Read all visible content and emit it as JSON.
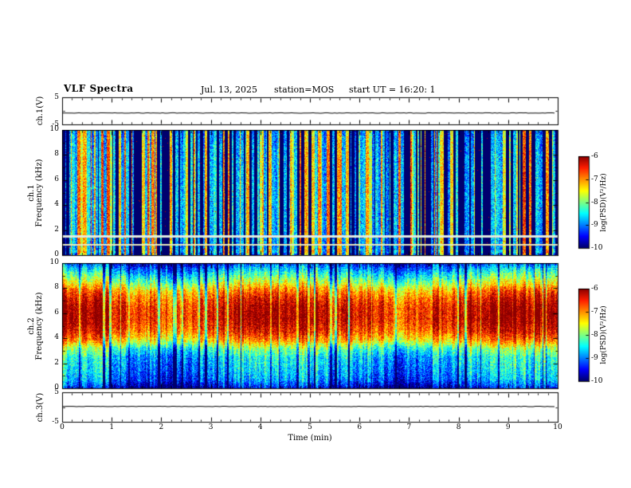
{
  "header": {
    "title": "VLF Spectra",
    "date": "Jul. 13, 2025",
    "station": "station=MOS",
    "start_ut": "start UT =  16:20: 1"
  },
  "chart_data": {
    "type": "heatmap",
    "title": "VLF Spectra",
    "description": "Multichannel VLF display: ch.1 voltage strip, ch.1 and ch.2 frequency-time spectrograms (0-10 kHz) over 0-10 minutes, ch.3 voltage strip, with two jet colorbars of log power spectral density",
    "x_axis": {
      "label": "Time (min)",
      "min": 0,
      "max": 10,
      "major_ticks": [
        0,
        1,
        2,
        3,
        4,
        5,
        6,
        7,
        8,
        9,
        10
      ],
      "minor_per_major": 5
    },
    "colormap": {
      "name": "jet",
      "stops": [
        [
          0.0,
          [
            0,
            0,
            110
          ]
        ],
        [
          0.125,
          [
            0,
            0,
            255
          ]
        ],
        [
          0.375,
          [
            0,
            255,
            255
          ]
        ],
        [
          0.625,
          [
            255,
            255,
            0
          ]
        ],
        [
          0.875,
          [
            255,
            30,
            0
          ]
        ],
        [
          1.0,
          [
            140,
            0,
            0
          ]
        ]
      ]
    },
    "colorbar": {
      "label": "log(PSD)(V²/Hz)",
      "min": -10,
      "max": -6,
      "ticks": [
        -6,
        -7,
        -8,
        -9,
        -10
      ]
    },
    "panels": [
      {
        "id": "ch1-waveform",
        "kind": "line",
        "ylabel": "ch.1(V)",
        "y_min": -5,
        "y_max": 5,
        "y_ticks": [
          5,
          -5
        ],
        "signal": {
          "level": -0.8,
          "noise": 0.1,
          "seed": 11
        }
      },
      {
        "id": "ch1-spectrogram",
        "kind": "spectrogram",
        "ylabel_lines": [
          "ch.1",
          "Frequency (kHz)"
        ],
        "y_min": 0,
        "y_max": 10,
        "y_major_ticks": [
          0,
          2,
          4,
          6,
          8,
          10
        ],
        "seed": 1234,
        "noise": 0.55,
        "slow_mod_amp": 0,
        "base_profile": [
          [
            0,
            -9.3
          ],
          [
            0.25,
            -8.6
          ],
          [
            0.5,
            -8.9
          ],
          [
            1,
            -8.8
          ],
          [
            2,
            -8.75
          ],
          [
            4,
            -8.7
          ],
          [
            6,
            -8.7
          ],
          [
            8,
            -8.75
          ],
          [
            10,
            -8.95
          ]
        ],
        "streaks": {
          "dark_fraction": 0.3,
          "bright_fraction": 0.32,
          "dark_shift": -2.6,
          "bright_shift": 1.5,
          "min_len": 1,
          "max_len": 4
        },
        "speckle_red_fraction": 0.004,
        "bright_lines": [
          {
            "freq": 1.5,
            "half_width": 0.07,
            "color": [
              226,
              236,
              222
            ]
          },
          {
            "freq": 0.85,
            "half_width": 0.06,
            "color": [
              232,
              232,
              186
            ]
          }
        ]
      },
      {
        "id": "ch2-spectrogram",
        "kind": "spectrogram",
        "ylabel_lines": [
          "ch.2",
          "Frequency (kHz)"
        ],
        "y_min": 0,
        "y_max": 10,
        "y_major_ticks": [
          0,
          2,
          4,
          6,
          8,
          10
        ],
        "seed": 5678,
        "noise": 0.5,
        "slow_mod_amp": 0.35,
        "base_profile": [
          [
            0,
            -9.8
          ],
          [
            0.25,
            -9.5
          ],
          [
            0.7,
            -9.1
          ],
          [
            1.5,
            -8.9
          ],
          [
            2.5,
            -8.7
          ],
          [
            3.2,
            -8.2
          ],
          [
            3.8,
            -7.3
          ],
          [
            4.5,
            -6.7
          ],
          [
            5.5,
            -6.35
          ],
          [
            6.5,
            -6.4
          ],
          [
            7.2,
            -6.7
          ],
          [
            7.8,
            -7.1
          ],
          [
            8.4,
            -7.8
          ],
          [
            9,
            -8.4
          ],
          [
            9.6,
            -9.0
          ],
          [
            10,
            -9.5
          ]
        ],
        "streaks": {
          "dark_fraction": 0.08,
          "bright_fraction": 0.25,
          "dark_shift": -1.2,
          "bright_shift": 0.45,
          "min_len": 1,
          "max_len": 3
        },
        "speckle_red_fraction": 0.0,
        "bright_lines": []
      },
      {
        "id": "ch3-waveform",
        "kind": "line",
        "ylabel": "ch.3(V)",
        "y_min": -5,
        "y_max": 5,
        "y_ticks": [
          5,
          -5
        ],
        "signal": {
          "level": 0.2,
          "noise": 0.08,
          "seed": 22
        }
      }
    ]
  }
}
